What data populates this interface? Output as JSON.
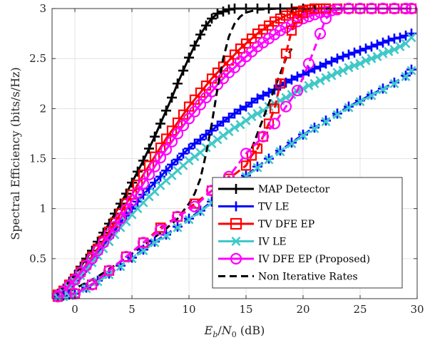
{
  "chart_data": {
    "type": "line",
    "xlabel": "E_b/N_0 (dB)",
    "xlabel_parts": {
      "E": "E",
      "b": "b",
      "slash": "/",
      "N": "N",
      "zero": "0",
      "unit": " (dB)"
    },
    "ylabel": "Spectral Efficiency (bits/s/Hz)",
    "xlim": [
      -2,
      30
    ],
    "ylim": [
      0.1,
      3
    ],
    "xticks": [
      0,
      5,
      10,
      15,
      20,
      25,
      30
    ],
    "yticks": [
      0.5,
      1,
      1.5,
      2,
      2.5,
      3
    ],
    "xtick_labels": [
      "0",
      "5",
      "10",
      "15",
      "20",
      "25",
      "30"
    ],
    "ytick_labels": [
      "0.5",
      "1",
      "1.5",
      "2",
      "2.5",
      "3"
    ],
    "grid": true,
    "legend_placement": "bottom-right",
    "series": [
      {
        "name": "MAP Detector",
        "color": "#000000",
        "marker": "plus",
        "dash": "solid",
        "x": [
          -1.5,
          -1.0,
          -0.5,
          0.0,
          0.5,
          1.0,
          1.5,
          2.0,
          2.5,
          3.0,
          3.5,
          4.0,
          4.5,
          5.0,
          5.5,
          6.0,
          6.5,
          7.0,
          7.5,
          8.0,
          8.5,
          9.0,
          9.5,
          10.0,
          10.5,
          11.0,
          11.5,
          12.0,
          12.5,
          13.0,
          13.5,
          14.0,
          15.0,
          16.0,
          17.0,
          18.0,
          19.0,
          20.0,
          21.0
        ],
        "y": [
          0.15,
          0.2,
          0.27,
          0.34,
          0.42,
          0.5,
          0.58,
          0.67,
          0.76,
          0.85,
          0.95,
          1.05,
          1.15,
          1.26,
          1.37,
          1.48,
          1.6,
          1.72,
          1.85,
          1.98,
          2.11,
          2.25,
          2.38,
          2.51,
          2.63,
          2.74,
          2.83,
          2.9,
          2.95,
          2.97,
          2.99,
          3.0,
          3.0,
          3.0,
          3.0,
          3.0,
          3.0,
          3.0,
          3.0
        ]
      },
      {
        "name": "TV LE",
        "color": "#0000ff",
        "marker": "plus",
        "dash": "solid",
        "x": [
          -1.5,
          -1.0,
          -0.5,
          0.0,
          0.5,
          1.0,
          1.5,
          2.0,
          2.5,
          3.0,
          3.5,
          4.0,
          4.5,
          5.0,
          5.5,
          6.0,
          6.5,
          7.0,
          7.5,
          8.0,
          8.5,
          9.0,
          9.5,
          10.0,
          10.5,
          11.0,
          11.5,
          12.0,
          12.5,
          13.0,
          13.5,
          14.0,
          14.5,
          15.0,
          15.5,
          16.0,
          16.5,
          17.0,
          17.5,
          18.0,
          18.5,
          19.0,
          19.5,
          20.0,
          20.5,
          21.0,
          21.5,
          22.0,
          22.5,
          23.0,
          23.5,
          24.0,
          24.5,
          25.0,
          25.5,
          26.0,
          26.5,
          27.0,
          27.5,
          28.0,
          28.5,
          29.0,
          29.5
        ],
        "y": [
          0.13,
          0.17,
          0.22,
          0.28,
          0.34,
          0.41,
          0.48,
          0.55,
          0.63,
          0.71,
          0.78,
          0.86,
          0.93,
          1.0,
          1.07,
          1.14,
          1.2,
          1.26,
          1.32,
          1.38,
          1.44,
          1.49,
          1.55,
          1.6,
          1.65,
          1.69,
          1.74,
          1.78,
          1.83,
          1.87,
          1.91,
          1.95,
          1.99,
          2.02,
          2.06,
          2.1,
          2.13,
          2.16,
          2.19,
          2.23,
          2.26,
          2.29,
          2.32,
          2.34,
          2.37,
          2.4,
          2.42,
          2.45,
          2.47,
          2.5,
          2.52,
          2.54,
          2.56,
          2.58,
          2.6,
          2.62,
          2.64,
          2.66,
          2.68,
          2.7,
          2.71,
          2.73,
          2.75
        ]
      },
      {
        "name": "TV DFE EP",
        "color": "#ff0000",
        "marker": "square",
        "dash": "solid",
        "x": [
          -1.5,
          -1.0,
          -0.5,
          0.0,
          0.5,
          1.0,
          1.5,
          2.0,
          2.5,
          3.0,
          3.5,
          4.0,
          4.5,
          5.0,
          5.5,
          6.0,
          6.5,
          7.0,
          7.5,
          8.0,
          8.5,
          9.0,
          9.5,
          10.0,
          10.5,
          11.0,
          11.5,
          12.0,
          12.5,
          13.0,
          13.5,
          14.0,
          14.5,
          15.0,
          15.5,
          16.0,
          16.5,
          17.0,
          17.5,
          18.0,
          18.5,
          19.0,
          19.5,
          20.0,
          20.5,
          21.0,
          21.5,
          22.0,
          23.0,
          24.0,
          25.0,
          26.0,
          27.0,
          28.0,
          29.0,
          29.5
        ],
        "y": [
          0.14,
          0.18,
          0.24,
          0.3,
          0.37,
          0.44,
          0.52,
          0.6,
          0.68,
          0.77,
          0.86,
          0.95,
          1.05,
          1.14,
          1.24,
          1.34,
          1.43,
          1.52,
          1.61,
          1.7,
          1.78,
          1.86,
          1.94,
          2.02,
          2.09,
          2.16,
          2.23,
          2.3,
          2.36,
          2.42,
          2.48,
          2.54,
          2.6,
          2.65,
          2.7,
          2.75,
          2.79,
          2.83,
          2.87,
          2.9,
          2.93,
          2.95,
          2.97,
          2.98,
          2.99,
          3.0,
          3.0,
          3.0,
          3.0,
          3.0,
          3.0,
          3.0,
          3.0,
          3.0,
          3.0,
          3.0
        ]
      },
      {
        "name": "IV LE",
        "color": "#40c8c8",
        "marker": "x",
        "dash": "solid",
        "x": [
          -1.5,
          -1.0,
          -0.5,
          0.0,
          0.5,
          1.0,
          1.5,
          2.0,
          2.5,
          3.0,
          3.5,
          4.0,
          4.5,
          5.0,
          5.5,
          6.0,
          6.5,
          7.0,
          7.5,
          8.0,
          8.5,
          9.0,
          9.5,
          10.0,
          10.5,
          11.0,
          11.5,
          12.0,
          12.5,
          13.0,
          13.5,
          14.0,
          14.5,
          15.0,
          15.5,
          16.0,
          16.5,
          17.0,
          17.5,
          18.0,
          18.5,
          19.0,
          19.5,
          20.0,
          20.5,
          21.0,
          21.5,
          22.0,
          22.5,
          23.0,
          23.5,
          24.0,
          24.5,
          25.0,
          25.5,
          26.0,
          26.5,
          27.0,
          27.5,
          28.0,
          28.5,
          29.0,
          29.5
        ],
        "y": [
          0.12,
          0.16,
          0.21,
          0.27,
          0.33,
          0.39,
          0.46,
          0.53,
          0.6,
          0.67,
          0.74,
          0.81,
          0.87,
          0.94,
          1.0,
          1.06,
          1.12,
          1.17,
          1.23,
          1.28,
          1.33,
          1.38,
          1.43,
          1.48,
          1.52,
          1.56,
          1.61,
          1.65,
          1.69,
          1.73,
          1.77,
          1.81,
          1.84,
          1.88,
          1.92,
          1.95,
          1.98,
          2.02,
          2.05,
          2.08,
          2.11,
          2.14,
          2.17,
          2.2,
          2.23,
          2.25,
          2.28,
          2.31,
          2.33,
          2.36,
          2.38,
          2.41,
          2.43,
          2.45,
          2.48,
          2.5,
          2.52,
          2.55,
          2.57,
          2.59,
          2.62,
          2.65,
          2.71
        ]
      },
      {
        "name": "IV DFE EP (Proposed)",
        "color": "#ff00ff",
        "marker": "circle",
        "dash": "solid",
        "x": [
          -1.5,
          -1.0,
          -0.5,
          0.0,
          0.5,
          1.0,
          1.5,
          2.0,
          2.5,
          3.0,
          3.5,
          4.0,
          4.5,
          5.0,
          5.5,
          6.0,
          6.5,
          7.0,
          7.5,
          8.0,
          8.5,
          9.0,
          9.5,
          10.0,
          10.5,
          11.0,
          11.5,
          12.0,
          12.5,
          13.0,
          13.5,
          14.0,
          14.5,
          15.0,
          15.5,
          16.0,
          16.5,
          17.0,
          17.5,
          18.0,
          18.5,
          19.0,
          19.5,
          20.0,
          20.5,
          21.0,
          21.5,
          22.0,
          22.5,
          23.0,
          24.0,
          25.0,
          26.0,
          27.0,
          28.0,
          29.0,
          29.5
        ],
        "y": [
          0.13,
          0.17,
          0.23,
          0.29,
          0.36,
          0.43,
          0.5,
          0.58,
          0.66,
          0.74,
          0.82,
          0.9,
          0.99,
          1.08,
          1.16,
          1.25,
          1.34,
          1.42,
          1.51,
          1.59,
          1.67,
          1.75,
          1.83,
          1.9,
          1.97,
          2.04,
          2.11,
          2.17,
          2.24,
          2.3,
          2.36,
          2.41,
          2.47,
          2.52,
          2.57,
          2.62,
          2.66,
          2.7,
          2.74,
          2.78,
          2.81,
          2.84,
          2.87,
          2.9,
          2.92,
          2.94,
          2.96,
          2.97,
          2.98,
          2.99,
          3.0,
          3.0,
          3.0,
          3.0,
          3.0,
          3.0,
          3.0
        ]
      },
      {
        "name": "Non Iterative Rates",
        "color": "#000000",
        "marker": "none",
        "dash": "dashed",
        "x": [
          -1.5,
          0,
          2,
          4,
          6,
          8,
          9,
          10,
          10.5,
          11,
          11.5,
          12,
          12.5,
          13,
          13.5,
          14,
          14.5,
          15,
          16,
          18,
          20,
          22,
          25,
          29.5
        ],
        "y": [
          0.13,
          0.2,
          0.32,
          0.47,
          0.63,
          0.8,
          0.9,
          1.05,
          1.15,
          1.3,
          1.55,
          1.85,
          2.2,
          2.5,
          2.72,
          2.85,
          2.92,
          2.96,
          2.99,
          3.0,
          3.0,
          3.0,
          3.0,
          3.0
        ]
      },
      {
        "name": "",
        "color": "#000000",
        "marker": "none",
        "dash": "dashed",
        "x": [
          15.5,
          16,
          16.5,
          17,
          17.5,
          18,
          18.5,
          19
        ],
        "y": [
          1.6,
          1.75,
          1.9,
          2.05,
          2.2,
          2.35,
          2.5,
          2.6
        ]
      },
      {
        "name": "",
        "color": "#0000ff",
        "marker": "plus",
        "dash": "dashed",
        "x": [
          -1.5,
          -1.0,
          -0.5,
          0.0,
          1.0,
          2.0,
          3.0,
          4.0,
          5.0,
          6.0,
          7.0,
          8.0,
          9.0,
          10.0,
          11.0,
          12.0,
          13.0,
          14.0,
          15.0,
          16.0,
          17.0,
          18.0,
          19.0,
          20.0,
          21.0,
          22.0,
          23.0,
          24.0,
          25.0,
          26.0,
          27.0,
          28.0,
          29.0,
          29.5
        ],
        "y": [
          0.12,
          0.13,
          0.14,
          0.15,
          0.21,
          0.28,
          0.35,
          0.43,
          0.51,
          0.59,
          0.67,
          0.74,
          0.82,
          0.9,
          0.98,
          1.07,
          1.16,
          1.25,
          1.33,
          1.42,
          1.5,
          1.58,
          1.66,
          1.74,
          1.81,
          1.88,
          1.95,
          2.02,
          2.08,
          2.14,
          2.2,
          2.26,
          2.33,
          2.39
        ]
      },
      {
        "name": "",
        "color": "#40c8c8",
        "marker": "x",
        "dash": "dashed",
        "x": [
          -1.5,
          -1.0,
          -0.5,
          0.0,
          1.0,
          2.0,
          3.0,
          4.0,
          5.0,
          6.0,
          7.0,
          8.0,
          9.0,
          10.0,
          11.0,
          12.0,
          13.0,
          14.0,
          15.0,
          16.0,
          17.0,
          18.0,
          19.0,
          20.0,
          21.0,
          22.0,
          23.0,
          24.0,
          25.0,
          26.0,
          27.0,
          28.0,
          29.0,
          29.5
        ],
        "y": [
          0.11,
          0.12,
          0.13,
          0.14,
          0.2,
          0.27,
          0.34,
          0.42,
          0.5,
          0.58,
          0.66,
          0.73,
          0.81,
          0.89,
          0.97,
          1.06,
          1.15,
          1.24,
          1.32,
          1.41,
          1.49,
          1.57,
          1.65,
          1.73,
          1.8,
          1.87,
          1.94,
          2.01,
          2.07,
          2.13,
          2.19,
          2.25,
          2.32,
          2.38
        ]
      },
      {
        "name": "",
        "color": "#ff0000",
        "marker": "square",
        "dash": "dashed",
        "x": [
          -1.5,
          0.0,
          1.5,
          3.0,
          4.5,
          6.0,
          7.5,
          9.0,
          10.5,
          12.0,
          13.5,
          15.0,
          15.5,
          16.0,
          16.5,
          17.0,
          17.5,
          18.0,
          18.5,
          19.0,
          19.5,
          20.0,
          21.0,
          22.0
        ],
        "y": [
          0.12,
          0.15,
          0.24,
          0.38,
          0.52,
          0.66,
          0.81,
          0.92,
          1.05,
          1.18,
          1.3,
          1.43,
          1.53,
          1.6,
          1.72,
          1.85,
          2.0,
          2.25,
          2.55,
          2.78,
          2.9,
          2.96,
          3.0,
          3.0
        ]
      },
      {
        "name": "",
        "color": "#ff00ff",
        "marker": "circle",
        "dash": "dashed",
        "x": [
          -1.5,
          0.0,
          1.5,
          3.0,
          4.5,
          6.0,
          7.5,
          9.0,
          10.5,
          12.0,
          13.5,
          15.0,
          16.5,
          17.5,
          18.5,
          19.5,
          20.5,
          21.5,
          22.0,
          23.0,
          24.0,
          25.0,
          26.0,
          27.0,
          28.0,
          29.0,
          29.5
        ],
        "y": [
          0.12,
          0.15,
          0.24,
          0.38,
          0.52,
          0.66,
          0.79,
          0.92,
          1.02,
          1.18,
          1.32,
          1.55,
          1.72,
          1.85,
          2.02,
          2.18,
          2.45,
          2.75,
          2.9,
          2.99,
          3.0,
          3.0,
          3.0,
          3.0,
          3.0,
          3.0,
          3.0
        ]
      }
    ]
  }
}
